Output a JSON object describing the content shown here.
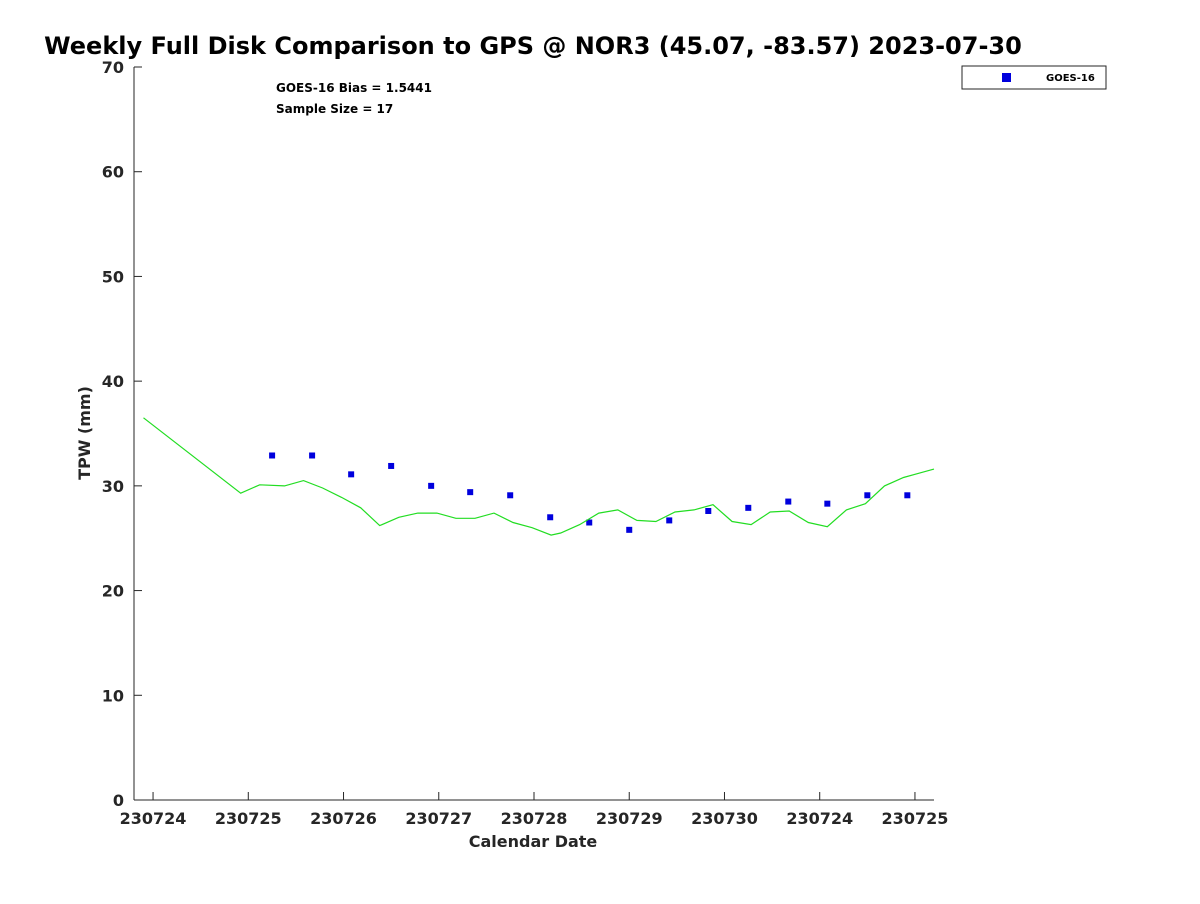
{
  "chart_data": {
    "type": "scatter",
    "title": "Weekly Full Disk Comparison to GPS @ NOR3 (45.07, -83.57) 2023-07-30",
    "xlabel": "Calendar Date",
    "ylabel": "TPW (mm)",
    "ylim": [
      0,
      70
    ],
    "yticks": [
      0,
      10,
      20,
      30,
      40,
      50,
      60,
      70
    ],
    "xlim": [
      -0.2,
      8.2
    ],
    "xticks": [
      {
        "pos": 0,
        "label": "230724"
      },
      {
        "pos": 1,
        "label": "230725"
      },
      {
        "pos": 2,
        "label": "230726"
      },
      {
        "pos": 3,
        "label": "230727"
      },
      {
        "pos": 4,
        "label": "230728"
      },
      {
        "pos": 5,
        "label": "230729"
      },
      {
        "pos": 6,
        "label": "230730"
      },
      {
        "pos": 7,
        "label": "230724"
      },
      {
        "pos": 8,
        "label": "230725"
      }
    ],
    "annotations": [
      "GOES-16 Bias = 1.5441",
      "Sample Size = 17"
    ],
    "legend": {
      "position": "outside-top-right",
      "entries": [
        "GOES-16"
      ]
    },
    "series": [
      {
        "name": "GOES-16",
        "kind": "scatter",
        "color": "#0000dd",
        "x": [
          1.25,
          1.67,
          2.08,
          2.5,
          2.92,
          3.33,
          3.75,
          4.17,
          4.58,
          5.0,
          5.42,
          5.83,
          6.25,
          6.67,
          7.08,
          7.5,
          7.92
        ],
        "y": [
          32.9,
          32.9,
          31.1,
          31.9,
          30.0,
          29.4,
          29.1,
          27.0,
          26.5,
          25.8,
          26.7,
          27.6,
          27.9,
          28.5,
          28.3,
          29.1,
          29.1
        ]
      },
      {
        "name": "GPS",
        "kind": "line",
        "color": "#22dd22",
        "x": [
          -0.1,
          0.92,
          1.12,
          1.38,
          1.58,
          1.78,
          1.98,
          2.18,
          2.38,
          2.58,
          2.78,
          2.98,
          3.18,
          3.38,
          3.58,
          3.78,
          3.98,
          4.18,
          4.28,
          4.48,
          4.68,
          4.88,
          5.08,
          5.28,
          5.48,
          5.68,
          5.88,
          6.08,
          6.28,
          6.48,
          6.68,
          6.88,
          7.08,
          7.28,
          7.48,
          7.68,
          7.88,
          8.0,
          8.2
        ],
        "y": [
          36.5,
          29.3,
          30.1,
          30.0,
          30.5,
          29.8,
          28.9,
          27.9,
          26.2,
          27.0,
          27.4,
          27.4,
          26.9,
          26.9,
          27.4,
          26.5,
          26.0,
          25.3,
          25.5,
          26.3,
          27.4,
          27.7,
          26.7,
          26.6,
          27.5,
          27.7,
          28.2,
          26.6,
          26.3,
          27.5,
          27.6,
          26.5,
          26.1,
          27.7,
          28.3,
          30.0,
          30.8,
          31.1,
          31.6
        ]
      }
    ]
  }
}
